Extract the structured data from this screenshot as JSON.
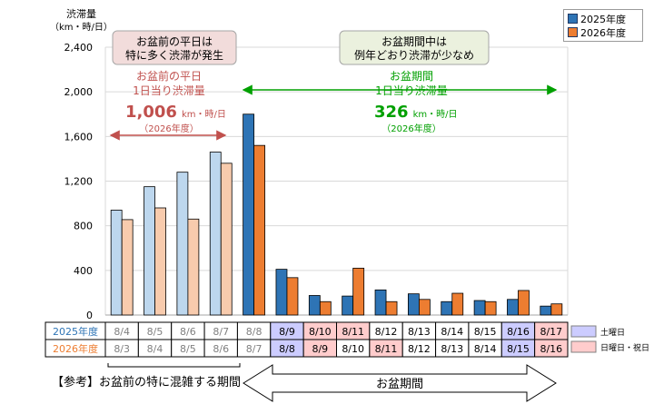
{
  "chart_data": {
    "type": "bar",
    "ylabel": "渋滞量",
    "yunit": "（km・時/日）",
    "ylim": [
      0,
      2400
    ],
    "yticks": [
      "0",
      "400",
      "800",
      "1,200",
      "1,600",
      "2,000",
      "2,400"
    ],
    "ytick_values": [
      0,
      400,
      800,
      1200,
      1600,
      2000,
      2400
    ],
    "grid": true,
    "legend_position": "top-right",
    "series": [
      {
        "name": "2025年度",
        "values": [
          940,
          1150,
          1280,
          1460,
          1800,
          410,
          175,
          170,
          225,
          190,
          120,
          130,
          140,
          80
        ],
        "color": "#2e74b5",
        "light_color": "#bdd7ee"
      },
      {
        "name": "2026年度",
        "values": [
          855,
          960,
          860,
          1360,
          1520,
          335,
          120,
          420,
          120,
          140,
          195,
          120,
          220,
          100
        ],
        "color": "#ed7d31",
        "light_color": "#f8cbad"
      }
    ],
    "highlight_from_index": 4,
    "date_rows": [
      {
        "label": "2025年度",
        "color": "#2e74b5",
        "cells": [
          "8/4",
          "8/5",
          "8/6",
          "8/7",
          "8/8",
          "8/9",
          "8/10",
          "8/11",
          "8/12",
          "8/13",
          "8/14",
          "8/15",
          "8/16",
          "8/17"
        ],
        "fills": [
          "",
          "",
          "",
          "",
          "",
          "sat",
          "sun",
          "sun",
          "",
          "",
          "",
          "",
          "sat",
          "sun"
        ]
      },
      {
        "label": "2026年度",
        "color": "#ed7d31",
        "cells": [
          "8/3",
          "8/4",
          "8/5",
          "8/6",
          "8/7",
          "8/8",
          "8/9",
          "8/10",
          "8/11",
          "8/12",
          "8/13",
          "8/14",
          "8/15",
          "8/16"
        ],
        "fills": [
          "",
          "",
          "",
          "",
          "",
          "sat",
          "sun",
          "",
          "sun",
          "",
          "",
          "",
          "sat",
          "sun"
        ]
      }
    ],
    "period_legend": {
      "sat": "土曜日",
      "sun": "日曜日・祝日"
    },
    "annotations": {
      "pre_box": [
        "お盆前の平日は",
        "特に多く渋滞が発生"
      ],
      "period_box": [
        "お盆期間中は",
        "例年どおり渋滞が少なめ"
      ],
      "pre_label": [
        "お盆前の平日",
        "1日当り渋滞量"
      ],
      "pre_value": "1,006",
      "pre_unit": "km・時/日",
      "pre_year": "（2026年度）",
      "period_label": [
        "お盆期間",
        "1日当り渋滞量"
      ],
      "period_value": "326",
      "period_unit": "km・時/日",
      "period_year": "（2026年度）"
    },
    "bottom_labels": {
      "pre": "【参考】お盆前の特に混雑する期間",
      "period": "お盆期間"
    }
  },
  "colors": {
    "sat": "#ccccff",
    "sun": "#ffcccc",
    "red": "#c0504d",
    "green": "#00a000"
  }
}
